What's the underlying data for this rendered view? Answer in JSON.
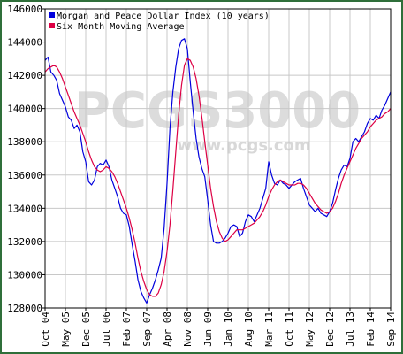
{
  "chart_data": {
    "type": "line",
    "title": "",
    "xlabel": "",
    "ylabel": "",
    "ylim": [
      128000,
      146000
    ],
    "y_ticks": [
      128000,
      130000,
      132000,
      134000,
      136000,
      138000,
      140000,
      142000,
      144000,
      146000
    ],
    "y_tick_labels": [
      "128000",
      "130000",
      "132000",
      "134000",
      "136000",
      "138000",
      "140000",
      "142000",
      "144000",
      "146000"
    ],
    "x_range": [
      "2004-10",
      "2014-09"
    ],
    "x_tick_labels": [
      "Oct 04",
      "May 05",
      "Dec 05",
      "Jul 06",
      "Feb 07",
      "Sep 07",
      "Apr 08",
      "Nov 08",
      "Jun 09",
      "Jan 10",
      "Aug 10",
      "Mar 11",
      "Oct 11",
      "May 12",
      "Dec 12",
      "Jul 13",
      "Feb 14",
      "Sep 14"
    ],
    "grid": true,
    "legend_position": "top-left",
    "watermark": {
      "main": "PCGS3000",
      "sub": "www.pcgs.com"
    },
    "series": [
      {
        "name": "Morgan and Peace Dollar Index (10 years)",
        "color": "#0000dd",
        "points": [
          [
            "2004-10",
            142900
          ],
          [
            "2004-11",
            143100
          ],
          [
            "2004-12",
            142200
          ],
          [
            "2005-01",
            142000
          ],
          [
            "2005-02",
            141700
          ],
          [
            "2005-03",
            140900
          ],
          [
            "2005-04",
            140500
          ],
          [
            "2005-05",
            140100
          ],
          [
            "2005-06",
            139500
          ],
          [
            "2005-07",
            139300
          ],
          [
            "2005-08",
            138800
          ],
          [
            "2005-09",
            139000
          ],
          [
            "2005-10",
            138600
          ],
          [
            "2005-11",
            137400
          ],
          [
            "2005-12",
            136800
          ],
          [
            "2006-01",
            135600
          ],
          [
            "2006-02",
            135400
          ],
          [
            "2006-03",
            135700
          ],
          [
            "2006-04",
            136500
          ],
          [
            "2006-05",
            136700
          ],
          [
            "2006-06",
            136600
          ],
          [
            "2006-07",
            136900
          ],
          [
            "2006-08",
            136500
          ],
          [
            "2006-09",
            135700
          ],
          [
            "2006-10",
            135200
          ],
          [
            "2006-11",
            134700
          ],
          [
            "2006-12",
            134000
          ],
          [
            "2007-01",
            133700
          ],
          [
            "2007-02",
            133600
          ],
          [
            "2007-03",
            132900
          ],
          [
            "2007-04",
            131800
          ],
          [
            "2007-05",
            130800
          ],
          [
            "2007-06",
            129700
          ],
          [
            "2007-07",
            129000
          ],
          [
            "2007-08",
            128600
          ],
          [
            "2007-09",
            128300
          ],
          [
            "2007-10",
            128800
          ],
          [
            "2007-11",
            129200
          ],
          [
            "2007-12",
            129700
          ],
          [
            "2008-01",
            130300
          ],
          [
            "2008-02",
            131000
          ],
          [
            "2008-03",
            132800
          ],
          [
            "2008-04",
            135500
          ],
          [
            "2008-05",
            138800
          ],
          [
            "2008-06",
            141000
          ],
          [
            "2008-07",
            142500
          ],
          [
            "2008-08",
            143600
          ],
          [
            "2008-09",
            144100
          ],
          [
            "2008-10",
            144200
          ],
          [
            "2008-11",
            143600
          ],
          [
            "2008-12",
            141600
          ],
          [
            "2009-01",
            139800
          ],
          [
            "2009-02",
            138200
          ],
          [
            "2009-03",
            137100
          ],
          [
            "2009-04",
            136400
          ],
          [
            "2009-05",
            135900
          ],
          [
            "2009-06",
            134500
          ],
          [
            "2009-07",
            133000
          ],
          [
            "2009-08",
            132000
          ],
          [
            "2009-09",
            131900
          ],
          [
            "2009-10",
            131900
          ],
          [
            "2009-11",
            132000
          ],
          [
            "2009-12",
            132200
          ],
          [
            "2010-01",
            132500
          ],
          [
            "2010-02",
            132900
          ],
          [
            "2010-03",
            133000
          ],
          [
            "2010-04",
            132900
          ],
          [
            "2010-05",
            132300
          ],
          [
            "2010-06",
            132500
          ],
          [
            "2010-07",
            133200
          ],
          [
            "2010-08",
            133600
          ],
          [
            "2010-09",
            133500
          ],
          [
            "2010-10",
            133200
          ],
          [
            "2010-11",
            133600
          ],
          [
            "2010-12",
            134000
          ],
          [
            "2011-01",
            134600
          ],
          [
            "2011-02",
            135200
          ],
          [
            "2011-03",
            136800
          ],
          [
            "2011-04",
            136000
          ],
          [
            "2011-05",
            135500
          ],
          [
            "2011-06",
            135400
          ],
          [
            "2011-07",
            135700
          ],
          [
            "2011-08",
            135500
          ],
          [
            "2011-09",
            135400
          ],
          [
            "2011-10",
            135200
          ],
          [
            "2011-11",
            135400
          ],
          [
            "2011-12",
            135600
          ],
          [
            "2012-01",
            135700
          ],
          [
            "2012-02",
            135800
          ],
          [
            "2012-03",
            135200
          ],
          [
            "2012-04",
            134700
          ],
          [
            "2012-05",
            134200
          ],
          [
            "2012-06",
            134000
          ],
          [
            "2012-07",
            133800
          ],
          [
            "2012-08",
            134000
          ],
          [
            "2012-09",
            133700
          ],
          [
            "2012-10",
            133600
          ],
          [
            "2012-11",
            133500
          ],
          [
            "2012-12",
            133800
          ],
          [
            "2013-01",
            134300
          ],
          [
            "2013-02",
            135100
          ],
          [
            "2013-03",
            135800
          ],
          [
            "2013-04",
            136300
          ],
          [
            "2013-05",
            136600
          ],
          [
            "2013-06",
            136500
          ],
          [
            "2013-07",
            137000
          ],
          [
            "2013-08",
            138000
          ],
          [
            "2013-09",
            138200
          ],
          [
            "2013-10",
            138000
          ],
          [
            "2013-11",
            138300
          ],
          [
            "2013-12",
            138600
          ],
          [
            "2014-01",
            139100
          ],
          [
            "2014-02",
            139400
          ],
          [
            "2014-03",
            139300
          ],
          [
            "2014-04",
            139600
          ],
          [
            "2014-05",
            139400
          ],
          [
            "2014-06",
            139900
          ],
          [
            "2014-07",
            140200
          ],
          [
            "2014-08",
            140600
          ],
          [
            "2014-09",
            141000
          ]
        ]
      },
      {
        "name": "Six Month Moving Average",
        "color": "#dd0044",
        "points": [
          [
            "2004-10",
            142200
          ],
          [
            "2004-11",
            142400
          ],
          [
            "2004-12",
            142500
          ],
          [
            "2005-01",
            142600
          ],
          [
            "2005-02",
            142500
          ],
          [
            "2005-03",
            142200
          ],
          [
            "2005-04",
            141800
          ],
          [
            "2005-05",
            141300
          ],
          [
            "2005-06",
            140800
          ],
          [
            "2005-07",
            140300
          ],
          [
            "2005-08",
            139800
          ],
          [
            "2005-09",
            139400
          ],
          [
            "2005-10",
            139000
          ],
          [
            "2005-11",
            138500
          ],
          [
            "2005-12",
            138000
          ],
          [
            "2006-01",
            137400
          ],
          [
            "2006-02",
            136900
          ],
          [
            "2006-03",
            136500
          ],
          [
            "2006-04",
            136300
          ],
          [
            "2006-05",
            136200
          ],
          [
            "2006-06",
            136300
          ],
          [
            "2006-07",
            136500
          ],
          [
            "2006-08",
            136400
          ],
          [
            "2006-09",
            136200
          ],
          [
            "2006-10",
            135900
          ],
          [
            "2006-11",
            135500
          ],
          [
            "2006-12",
            135000
          ],
          [
            "2007-01",
            134500
          ],
          [
            "2007-02",
            134000
          ],
          [
            "2007-03",
            133400
          ],
          [
            "2007-04",
            132700
          ],
          [
            "2007-05",
            131900
          ],
          [
            "2007-06",
            131000
          ],
          [
            "2007-07",
            130200
          ],
          [
            "2007-08",
            129600
          ],
          [
            "2007-09",
            129100
          ],
          [
            "2007-10",
            128800
          ],
          [
            "2007-11",
            128700
          ],
          [
            "2007-12",
            128700
          ],
          [
            "2008-01",
            128900
          ],
          [
            "2008-02",
            129400
          ],
          [
            "2008-03",
            130200
          ],
          [
            "2008-04",
            131400
          ],
          [
            "2008-05",
            133000
          ],
          [
            "2008-06",
            135100
          ],
          [
            "2008-07",
            137400
          ],
          [
            "2008-08",
            139600
          ],
          [
            "2008-09",
            141400
          ],
          [
            "2008-10",
            142600
          ],
          [
            "2008-11",
            143000
          ],
          [
            "2008-12",
            142900
          ],
          [
            "2009-01",
            142500
          ],
          [
            "2009-02",
            141800
          ],
          [
            "2009-03",
            140800
          ],
          [
            "2009-04",
            139500
          ],
          [
            "2009-05",
            138000
          ],
          [
            "2009-06",
            136600
          ],
          [
            "2009-07",
            135200
          ],
          [
            "2009-08",
            134100
          ],
          [
            "2009-09",
            133200
          ],
          [
            "2009-10",
            132600
          ],
          [
            "2009-11",
            132200
          ],
          [
            "2009-12",
            132000
          ],
          [
            "2010-01",
            132100
          ],
          [
            "2010-02",
            132300
          ],
          [
            "2010-03",
            132500
          ],
          [
            "2010-04",
            132700
          ],
          [
            "2010-05",
            132700
          ],
          [
            "2010-06",
            132700
          ],
          [
            "2010-07",
            132800
          ],
          [
            "2010-08",
            132900
          ],
          [
            "2010-09",
            133000
          ],
          [
            "2010-10",
            133100
          ],
          [
            "2010-11",
            133300
          ],
          [
            "2010-12",
            133500
          ],
          [
            "2011-01",
            133800
          ],
          [
            "2011-02",
            134200
          ],
          [
            "2011-03",
            134700
          ],
          [
            "2011-04",
            135100
          ],
          [
            "2011-05",
            135400
          ],
          [
            "2011-06",
            135600
          ],
          [
            "2011-07",
            135700
          ],
          [
            "2011-08",
            135600
          ],
          [
            "2011-09",
            135500
          ],
          [
            "2011-10",
            135400
          ],
          [
            "2011-11",
            135400
          ],
          [
            "2011-12",
            135400
          ],
          [
            "2012-01",
            135500
          ],
          [
            "2012-02",
            135500
          ],
          [
            "2012-03",
            135400
          ],
          [
            "2012-04",
            135200
          ],
          [
            "2012-05",
            134900
          ],
          [
            "2012-06",
            134600
          ],
          [
            "2012-07",
            134300
          ],
          [
            "2012-08",
            134100
          ],
          [
            "2012-09",
            133900
          ],
          [
            "2012-10",
            133800
          ],
          [
            "2012-11",
            133700
          ],
          [
            "2012-12",
            133800
          ],
          [
            "2013-01",
            134000
          ],
          [
            "2013-02",
            134400
          ],
          [
            "2013-03",
            134900
          ],
          [
            "2013-04",
            135500
          ],
          [
            "2013-05",
            136000
          ],
          [
            "2013-06",
            136400
          ],
          [
            "2013-07",
            136800
          ],
          [
            "2013-08",
            137200
          ],
          [
            "2013-09",
            137600
          ],
          [
            "2013-10",
            137900
          ],
          [
            "2013-11",
            138200
          ],
          [
            "2013-12",
            138400
          ],
          [
            "2014-01",
            138600
          ],
          [
            "2014-02",
            138900
          ],
          [
            "2014-03",
            139100
          ],
          [
            "2014-04",
            139300
          ],
          [
            "2014-05",
            139400
          ],
          [
            "2014-06",
            139500
          ],
          [
            "2014-07",
            139700
          ],
          [
            "2014-08",
            139800
          ],
          [
            "2014-09",
            140000
          ]
        ]
      }
    ]
  }
}
